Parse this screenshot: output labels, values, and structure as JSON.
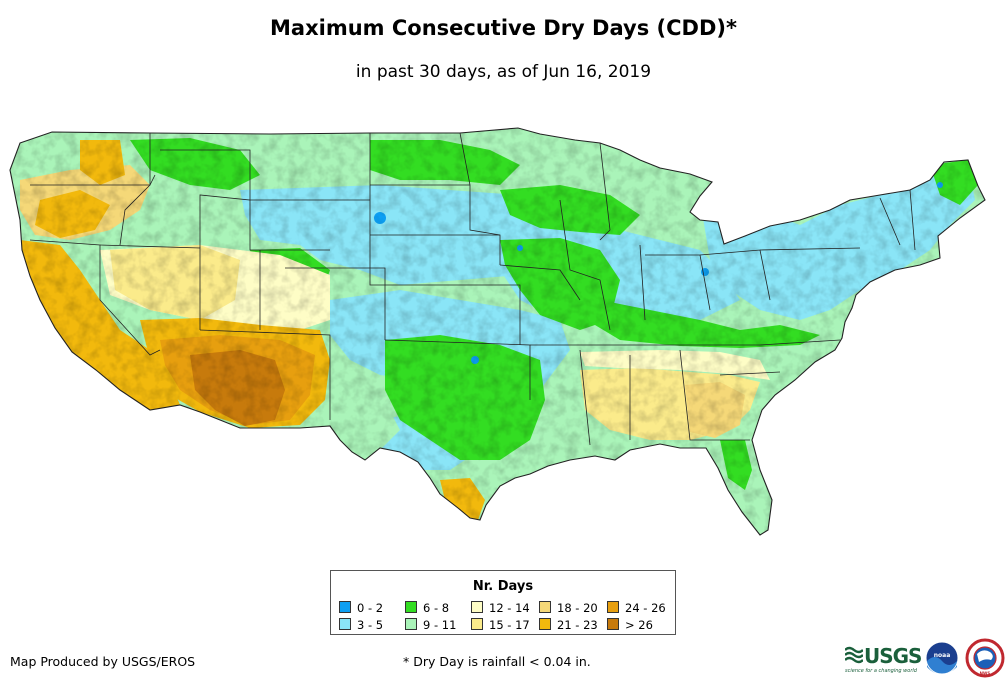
{
  "title": "Maximum Consecutive Dry Days (CDD)*",
  "subtitle": "in past 30 days, as of Jun 16, 2019",
  "legend": {
    "title": "Nr. Days",
    "items": [
      {
        "label": "0 - 2",
        "color": "#0d9ff3"
      },
      {
        "label": "3 - 5",
        "color": "#8ae5f7"
      },
      {
        "label": "6 - 8",
        "color": "#33dd22"
      },
      {
        "label": "9 - 11",
        "color": "#aaf4b9"
      },
      {
        "label": "12 - 14",
        "color": "#fefdc6"
      },
      {
        "label": "15 - 17",
        "color": "#fbeb8b"
      },
      {
        "label": "18 - 20",
        "color": "#f5d878"
      },
      {
        "label": "21 - 23",
        "color": "#f2b90d"
      },
      {
        "label": "24 - 26",
        "color": "#e79f0f"
      },
      {
        "label": "> 26",
        "color": "#c77a0c"
      }
    ]
  },
  "credit": "Map Produced by USGS/EROS",
  "footnote": "* Dry Day is rainfall < 0.04 in.",
  "logos": {
    "usgs": "USGS",
    "usgs_tagline": "science for a changing world",
    "noaa": "noaa",
    "nws": "NWS"
  }
}
